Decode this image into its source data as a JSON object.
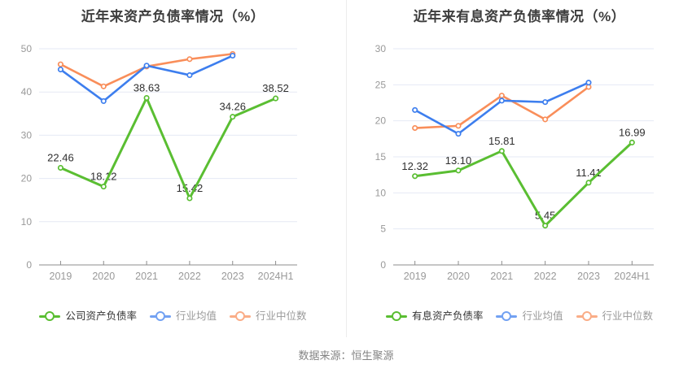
{
  "page": {
    "source_note": "数据来源：恒生聚源",
    "colors": {
      "company": "#5abe32",
      "industry_avg": "#3d7eee",
      "industry_median": "#f98e5a",
      "grid_line": "#e5e9f4",
      "axis_line": "#8c8c8c",
      "axis_label": "#999999",
      "data_label": "#2f2f2f",
      "title": "#3d3d3d",
      "legend_active": "#333333",
      "legend_muted": "#999999",
      "source_note": "#848484"
    }
  },
  "chart_data": [
    {
      "type": "line",
      "title": "近年来资产负债率情况（%）",
      "categories": [
        "2019",
        "2020",
        "2021",
        "2022",
        "2023",
        "2024H1"
      ],
      "ylim": [
        0,
        50
      ],
      "ytick_step": 10,
      "grid": true,
      "legend_position": "bottom",
      "series": [
        {
          "key": "company",
          "name": "公司资产负债率",
          "color_key": "company",
          "show_labels": true,
          "legend_text_color_key": "legend_active",
          "legend_muted": false,
          "values": [
            22.46,
            18.12,
            38.63,
            15.42,
            34.26,
            38.52
          ],
          "value_labels": [
            "22.46",
            "18.12",
            "38.63",
            "15.42",
            "34.26",
            "38.52"
          ]
        },
        {
          "key": "industry-avg",
          "name": "行业均值",
          "color_key": "industry_avg",
          "show_labels": false,
          "legend_text_color_key": "legend_muted",
          "legend_muted": true,
          "values": [
            45.2,
            37.9,
            46.1,
            43.9,
            48.4,
            null
          ]
        },
        {
          "key": "industry-median",
          "name": "行业中位数",
          "color_key": "industry_median",
          "show_labels": false,
          "legend_text_color_key": "legend_muted",
          "legend_muted": true,
          "values": [
            46.4,
            41.3,
            45.9,
            47.6,
            48.8,
            null
          ]
        }
      ]
    },
    {
      "type": "line",
      "title": "近年来有息资产负债率情况（%）",
      "categories": [
        "2019",
        "2020",
        "2021",
        "2022",
        "2023",
        "2024H1"
      ],
      "ylim": [
        0,
        30
      ],
      "ytick_step": 5,
      "grid": true,
      "legend_position": "bottom",
      "series": [
        {
          "key": "company",
          "name": "有息资产负债率",
          "color_key": "company",
          "show_labels": true,
          "legend_text_color_key": "legend_active",
          "legend_muted": false,
          "values": [
            12.32,
            13.1,
            15.81,
            5.45,
            11.41,
            16.99
          ],
          "value_labels": [
            "12.32",
            "13.10",
            "15.81",
            "5.45",
            "11.41",
            "16.99"
          ]
        },
        {
          "key": "industry-avg",
          "name": "行业均值",
          "color_key": "industry_avg",
          "show_labels": false,
          "legend_text_color_key": "legend_muted",
          "legend_muted": true,
          "values": [
            21.5,
            18.2,
            22.8,
            22.6,
            25.3,
            null
          ]
        },
        {
          "key": "industry-median",
          "name": "行业中位数",
          "color_key": "industry_median",
          "show_labels": false,
          "legend_text_color_key": "legend_muted",
          "legend_muted": true,
          "values": [
            19.0,
            19.3,
            23.5,
            20.2,
            24.7,
            null
          ]
        }
      ]
    }
  ]
}
